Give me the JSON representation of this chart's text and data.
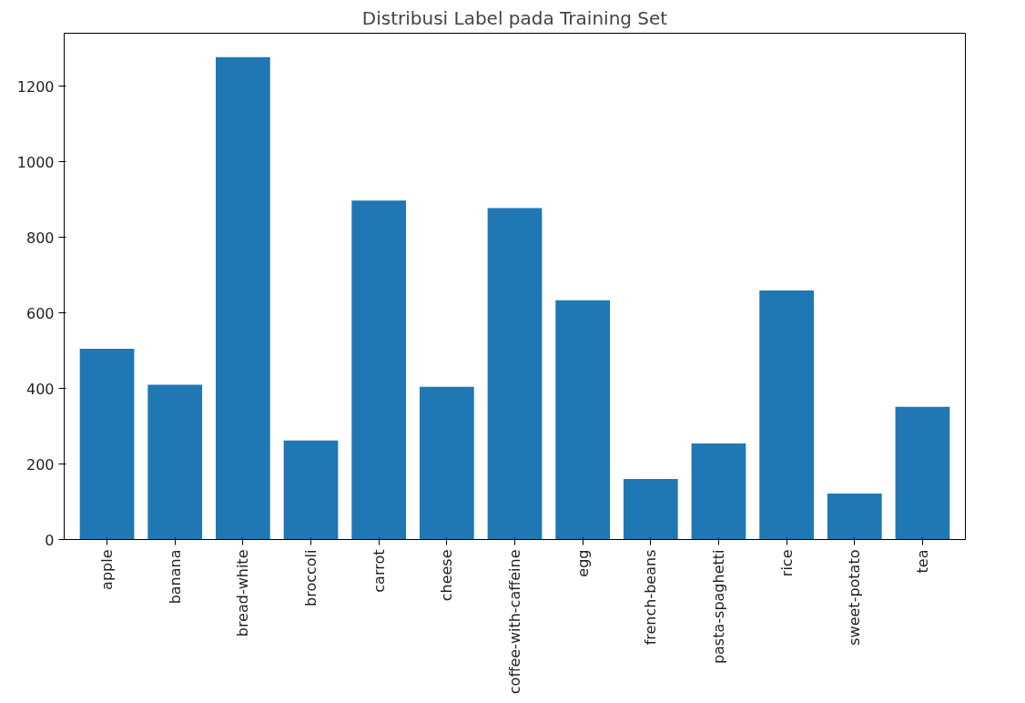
{
  "chart_data": {
    "type": "bar",
    "title": "Distribusi Label pada Training Set",
    "categories": [
      "apple",
      "banana",
      "bread-white",
      "broccoli",
      "carrot",
      "cheese",
      "coffee-with-caffeine",
      "egg",
      "french-beans",
      "pasta-spaghetti",
      "rice",
      "sweet-potato",
      "tea"
    ],
    "values": [
      505,
      410,
      1277,
      262,
      897,
      404,
      877,
      633,
      160,
      254,
      659,
      122,
      351
    ],
    "color": "#1f77b4",
    "ylim": [
      0,
      1340
    ],
    "yticks": [
      0,
      200,
      400,
      600,
      800,
      1000,
      1200
    ],
    "grid": false
  }
}
